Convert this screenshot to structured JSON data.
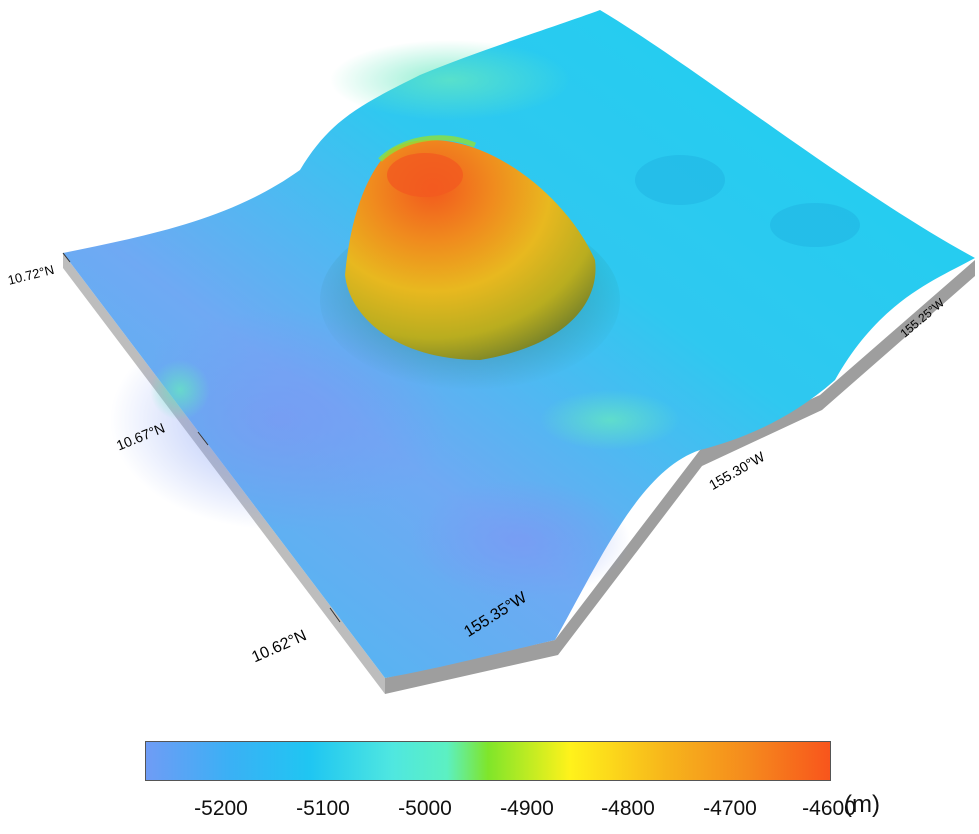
{
  "map": {
    "lat_labels": [
      "10.72°N",
      "10.67°N",
      "10.62°N"
    ],
    "lon_labels": [
      "155.35°W",
      "155.30°W",
      "155.25°W"
    ]
  },
  "legend": {
    "ticks": [
      "-5200",
      "-5100",
      "-5000",
      "-4900",
      "-4800",
      "-4700",
      "-4600"
    ],
    "unit": "(m)",
    "colors": [
      "#6f9cf5",
      "#1fc6f2",
      "#5cf0d0",
      "#7fe52a",
      "#fff21b",
      "#f7b51b",
      "#f8551c"
    ]
  },
  "colors": {
    "base": "#22c9f2",
    "deep": "#7aa7f4",
    "side": "#a8a8a8",
    "seamount_base": "#c9d624",
    "seamount_mid": "#f2b31c",
    "seamount_peak": "#f25a1f"
  }
}
